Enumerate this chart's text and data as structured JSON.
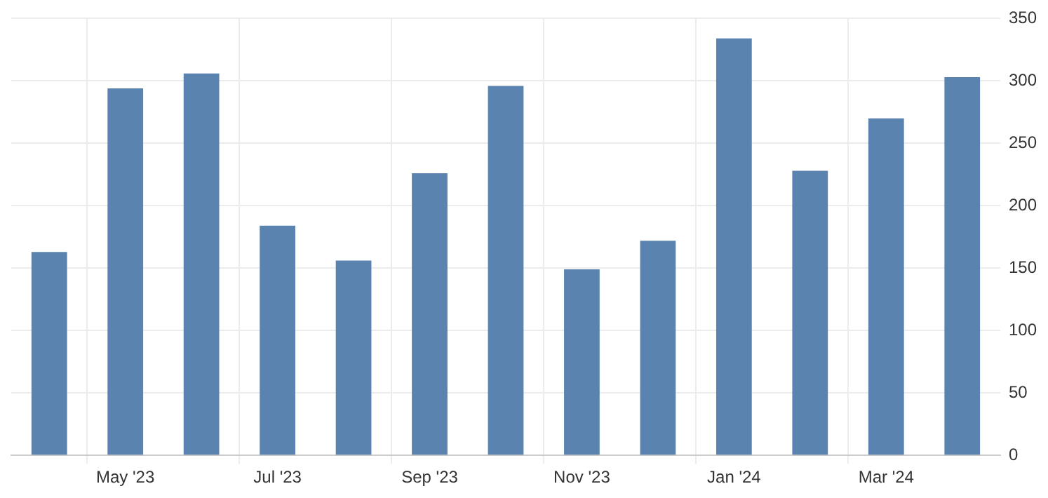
{
  "chart_data": {
    "type": "bar",
    "categories": [
      null,
      "May '23",
      null,
      "Jul '23",
      null,
      "Sep '23",
      null,
      "Nov '23",
      null,
      "Jan '24",
      null,
      "Mar '24",
      null
    ],
    "values": [
      163,
      294,
      306,
      184,
      156,
      226,
      296,
      149,
      172,
      334,
      228,
      270,
      303
    ],
    "color": "#5b83b0",
    "ylim": [
      0,
      350
    ],
    "yticks": [
      0,
      50,
      100,
      150,
      200,
      250,
      300,
      350
    ],
    "grid": true
  }
}
